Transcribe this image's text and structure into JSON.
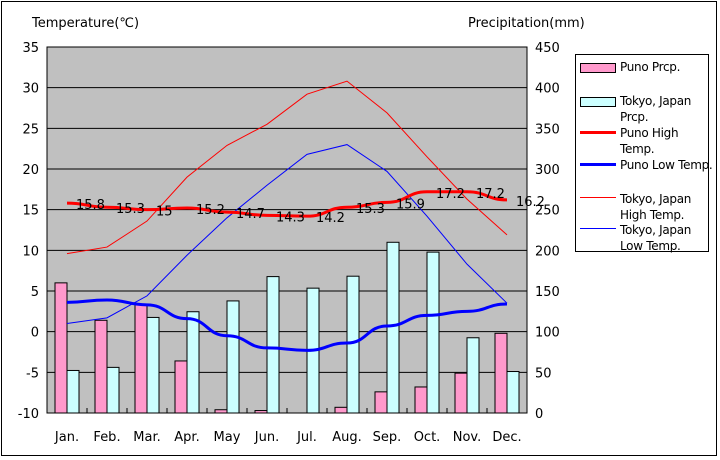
{
  "chart_data": {
    "type": "bar+line",
    "y_left_label": "Temperature(℃)",
    "y_right_label": "Precipitation(mm)",
    "y_left_range": [
      -10,
      35
    ],
    "y_left_ticks": [
      35,
      30,
      25,
      20,
      15,
      10,
      5,
      0,
      -5,
      -10
    ],
    "y_right_range": [
      0,
      450
    ],
    "y_right_ticks": [
      450,
      400,
      350,
      300,
      250,
      200,
      150,
      100,
      50,
      0
    ],
    "grid": true,
    "legend_placement": "right",
    "categories": [
      "Jan.",
      "Feb.",
      "Mar.",
      "Apr.",
      "May",
      "Jun.",
      "Jul.",
      "Aug.",
      "Sep.",
      "Oct.",
      "Nov.",
      "Dec."
    ],
    "series": [
      {
        "name": "Puno Prcp.",
        "kind": "bar",
        "axis": "right",
        "color": "#ff99cc",
        "values": [
          160,
          114,
          134,
          64,
          4,
          3,
          0,
          7,
          26,
          32,
          49,
          98
        ]
      },
      {
        "name": "Tokyo, Japan Prcp.",
        "kind": "bar",
        "axis": "right",
        "color": "#ccffff",
        "values": [
          52.3,
          56.1,
          117.5,
          124.5,
          137.8,
          167.7,
          153.5,
          168.2,
          209.9,
          197.8,
          92.5,
          51.0
        ]
      },
      {
        "name": "Puno High Temp.",
        "kind": "line",
        "axis": "left",
        "color": "#ff0000",
        "width": 3,
        "labels": true,
        "values": [
          15.8,
          15.3,
          15,
          15.2,
          14.7,
          14.3,
          14.2,
          15.3,
          15.9,
          17.2,
          17.2,
          16.2
        ]
      },
      {
        "name": "Puno Low Temp.",
        "kind": "line",
        "axis": "left",
        "color": "#0000ff",
        "width": 3,
        "values": [
          3.6,
          3.9,
          3.3,
          1.6,
          -0.5,
          -2.0,
          -2.3,
          -1.4,
          0.7,
          2.0,
          2.5,
          3.4
        ]
      },
      {
        "name": "Tokyo, Japan High Temp.",
        "kind": "line",
        "axis": "left",
        "color": "#ff0000",
        "width": 1,
        "values": [
          9.6,
          10.4,
          13.6,
          19.0,
          22.9,
          25.5,
          29.2,
          30.8,
          26.9,
          21.5,
          16.3,
          11.9
        ]
      },
      {
        "name": "Tokyo, Japan Low Temp.",
        "kind": "line",
        "axis": "left",
        "color": "#0000ff",
        "width": 1,
        "values": [
          1.0,
          1.7,
          4.4,
          9.4,
          14.0,
          18.0,
          21.8,
          23.0,
          19.7,
          14.2,
          8.3,
          3.5
        ]
      }
    ]
  },
  "legend": [
    {
      "label": "Puno Prcp."
    },
    {
      "label": "Tokyo, Japan Prcp."
    },
    {
      "label": "Puno High Temp."
    },
    {
      "label": "Puno Low Temp."
    },
    {
      "label": "Tokyo, Japan High Temp."
    },
    {
      "label": "Tokyo, Japan Low Temp."
    }
  ]
}
